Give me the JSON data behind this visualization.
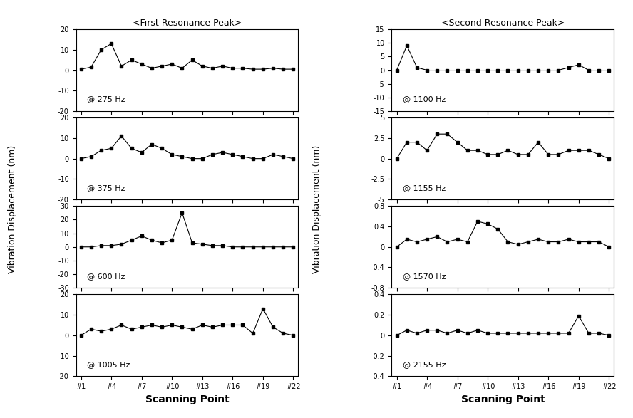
{
  "x_points": [
    1,
    4,
    7,
    10,
    13,
    16,
    19,
    22
  ],
  "x_ticks": [
    "#1",
    "#4",
    "#7",
    "#10",
    "#13",
    "#16",
    "#19",
    "#22"
  ],
  "left_title": "<First Resonance Peak>",
  "right_title": "<Second Resonance Peak>",
  "left_ylabel": "Vibration Displacement (nm)",
  "right_ylabel": "Vibration Displacement (nm)",
  "xlabel": "Scanning Point",
  "left_plots": [
    {
      "freq": "@ 275 Hz",
      "ylim": [
        -20,
        20
      ],
      "yticks": [
        -20,
        -10,
        0,
        10,
        20
      ],
      "data": [
        0.5,
        1.5,
        10,
        13,
        2,
        5,
        3,
        1,
        2,
        3,
        1,
        5,
        2,
        1,
        2,
        1,
        1,
        0.5,
        0.5,
        1,
        0.5,
        0.5
      ]
    },
    {
      "freq": "@ 375 Hz",
      "ylim": [
        -20,
        20
      ],
      "yticks": [
        -20,
        -10,
        0,
        10,
        20
      ],
      "data": [
        0,
        1,
        4,
        5,
        11,
        5,
        3,
        7,
        5,
        2,
        1,
        0,
        0,
        2,
        3,
        2,
        1,
        0,
        0,
        2,
        1,
        0
      ]
    },
    {
      "freq": "@ 600 Hz",
      "ylim": [
        -30,
        30
      ],
      "yticks": [
        -30,
        -20,
        -10,
        0,
        10,
        20,
        30
      ],
      "data": [
        0,
        0,
        1,
        1,
        2,
        5,
        8,
        5,
        3,
        5,
        25,
        3,
        2,
        1,
        1,
        0,
        0,
        0,
        0,
        0,
        0,
        0
      ]
    },
    {
      "freq": "@ 1005 Hz",
      "ylim": [
        -20,
        20
      ],
      "yticks": [
        -20,
        -10,
        0,
        10,
        20
      ],
      "data": [
        0,
        3,
        2,
        3,
        5,
        3,
        4,
        5,
        4,
        5,
        4,
        3,
        5,
        4,
        5,
        5,
        5,
        1,
        13,
        4,
        1,
        0
      ]
    }
  ],
  "right_plots": [
    {
      "freq": "@ 1100 Hz",
      "ylim": [
        -15,
        15
      ],
      "yticks": [
        -15,
        -10,
        -5,
        0,
        5,
        10,
        15
      ],
      "data": [
        0,
        9,
        1,
        0,
        0,
        0,
        0,
        0,
        0,
        0,
        0,
        0,
        0,
        0,
        0,
        0,
        0,
        1,
        2,
        0,
        0,
        0
      ]
    },
    {
      "freq": "@ 1155 Hz",
      "ylim": [
        -5.0,
        5.0
      ],
      "yticks": [
        -5.0,
        -2.5,
        0.0,
        2.5,
        5.0
      ],
      "data": [
        0,
        2,
        2,
        1,
        3,
        3,
        2,
        1,
        1,
        0.5,
        0.5,
        1,
        0.5,
        0.5,
        2,
        0.5,
        0.5,
        1,
        1,
        1,
        0.5,
        0
      ]
    },
    {
      "freq": "@ 1570 Hz",
      "ylim": [
        -0.8,
        0.8
      ],
      "yticks": [
        -0.8,
        -0.4,
        0.0,
        0.4,
        0.8
      ],
      "data": [
        0,
        0.15,
        0.1,
        0.15,
        0.2,
        0.1,
        0.15,
        0.1,
        0.5,
        0.45,
        0.35,
        0.1,
        0.05,
        0.1,
        0.15,
        0.1,
        0.1,
        0.15,
        0.1,
        0.1,
        0.1,
        0
      ]
    },
    {
      "freq": "@ 2155 Hz",
      "ylim": [
        -0.4,
        0.4
      ],
      "yticks": [
        -0.4,
        -0.2,
        0.0,
        0.2,
        0.4
      ],
      "data": [
        0,
        0.05,
        0.02,
        0.05,
        0.05,
        0.02,
        0.05,
        0.02,
        0.05,
        0.02,
        0.02,
        0.02,
        0.02,
        0.02,
        0.02,
        0.02,
        0.02,
        0.02,
        0.19,
        0.02,
        0.02,
        0
      ]
    }
  ]
}
